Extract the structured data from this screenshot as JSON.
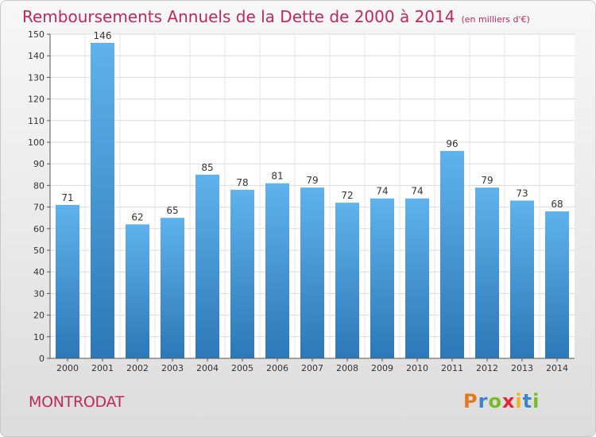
{
  "title": "Remboursements Annuels de la Dette de 2000 à 2014",
  "unit": "(en milliers d'€)",
  "commune": "MONTRODAT",
  "logo": {
    "letters": [
      "P",
      "r",
      "o",
      "x",
      "i",
      "t",
      "i"
    ],
    "colors": [
      "#e07a1f",
      "#3a86c8",
      "#7ab929",
      "#e0282e",
      "#f0b21b",
      "#3a86c8",
      "#7ab929"
    ]
  },
  "colors": {
    "title": "#c0285c",
    "bar_top": "#5fb2ec",
    "bar_bottom": "#2c78b8"
  },
  "chart_data": {
    "type": "bar",
    "categories": [
      "2000",
      "2001",
      "2002",
      "2003",
      "2004",
      "2005",
      "2006",
      "2007",
      "2008",
      "2009",
      "2010",
      "2011",
      "2012",
      "2013",
      "2014"
    ],
    "values": [
      71,
      146,
      62,
      65,
      85,
      78,
      81,
      79,
      72,
      74,
      74,
      96,
      79,
      73,
      68
    ],
    "ylim": [
      0,
      150
    ],
    "yticks": [
      0,
      10,
      20,
      30,
      40,
      50,
      60,
      70,
      80,
      90,
      100,
      110,
      120,
      130,
      140,
      150
    ],
    "grid": true,
    "data_labels": true
  }
}
